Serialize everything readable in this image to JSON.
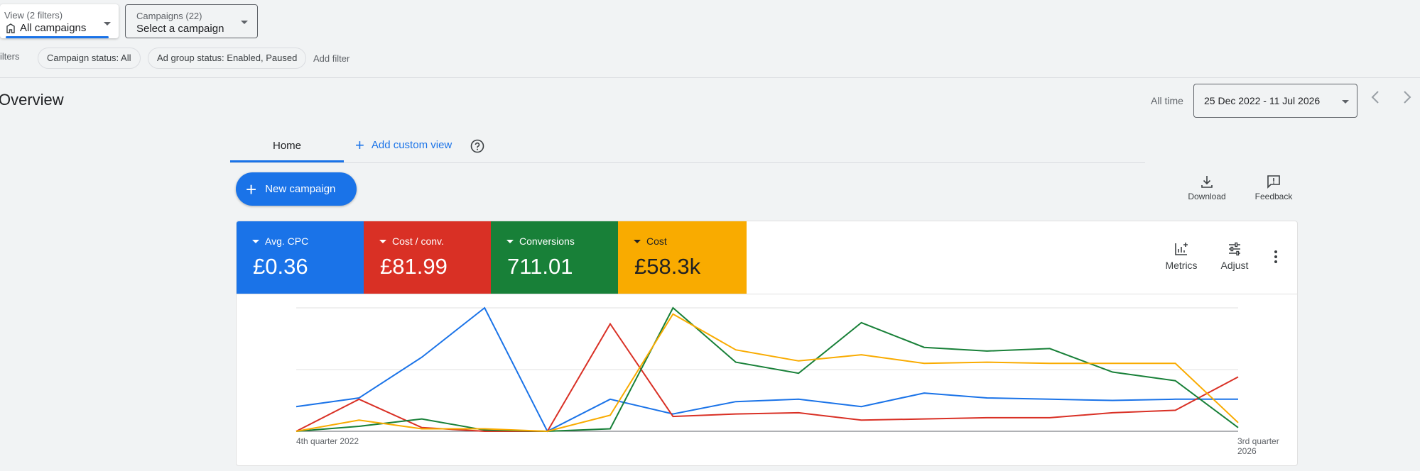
{
  "filters_bar": {
    "view_selector": {
      "small_label": "View (2 filters)",
      "value": "All campaigns",
      "icon": "building-icon"
    },
    "campaign_selector": {
      "small_label": "Campaigns (22)",
      "value": "Select a campaign"
    },
    "filters_label": "ilters",
    "chips": [
      "Campaign status: All",
      "Ad group status: Enabled, Paused"
    ],
    "add_filter": "Add filter"
  },
  "header": {
    "title": "Overview",
    "range_label": "All time",
    "date_range": "25 Dec 2022 - 11 Jul 2026"
  },
  "tabs": {
    "home": "Home",
    "add_custom_view": "Add custom view"
  },
  "actions": {
    "new_campaign": "New campaign",
    "download": "Download",
    "feedback": "Feedback",
    "metrics": "Metrics",
    "adjust": "Adjust"
  },
  "metric_tiles": [
    {
      "label": "Avg. CPC",
      "value": "£0.36",
      "color": "#1a73e8"
    },
    {
      "label": "Cost / conv.",
      "value": "£81.99",
      "color": "#d93025"
    },
    {
      "label": "Conversions",
      "value": "711.01",
      "color": "#188038"
    },
    {
      "label": "Cost",
      "value": "£58.3k",
      "color": "#f9ab00"
    }
  ],
  "chart_data": {
    "type": "line",
    "x_start_label": "4th quarter 2022",
    "x_end_label": "3rd quarter 2026",
    "y_scale": "relative, normalized 0-100 per metric (no y tick labels shown)",
    "grid": "horizontal",
    "series": [
      {
        "name": "Avg. CPC",
        "color": "#1a73e8",
        "values": [
          20,
          27,
          60,
          100,
          0,
          26,
          14,
          24,
          26,
          20,
          31,
          27,
          26,
          25,
          26,
          26
        ]
      },
      {
        "name": "Cost / conv.",
        "color": "#d93025",
        "values": [
          0,
          26,
          3,
          0,
          0,
          87,
          12,
          14,
          15,
          9,
          10,
          11,
          11,
          15,
          17,
          44
        ]
      },
      {
        "name": "Conversions",
        "color": "#188038",
        "values": [
          0,
          4,
          10,
          1,
          0,
          2,
          100,
          56,
          47,
          88,
          68,
          65,
          67,
          48,
          41,
          3
        ]
      },
      {
        "name": "Cost",
        "color": "#f9ab00",
        "values": [
          0,
          9,
          2,
          2,
          0,
          13,
          95,
          66,
          57,
          62,
          55,
          56,
          55,
          55,
          55,
          7
        ]
      }
    ]
  }
}
